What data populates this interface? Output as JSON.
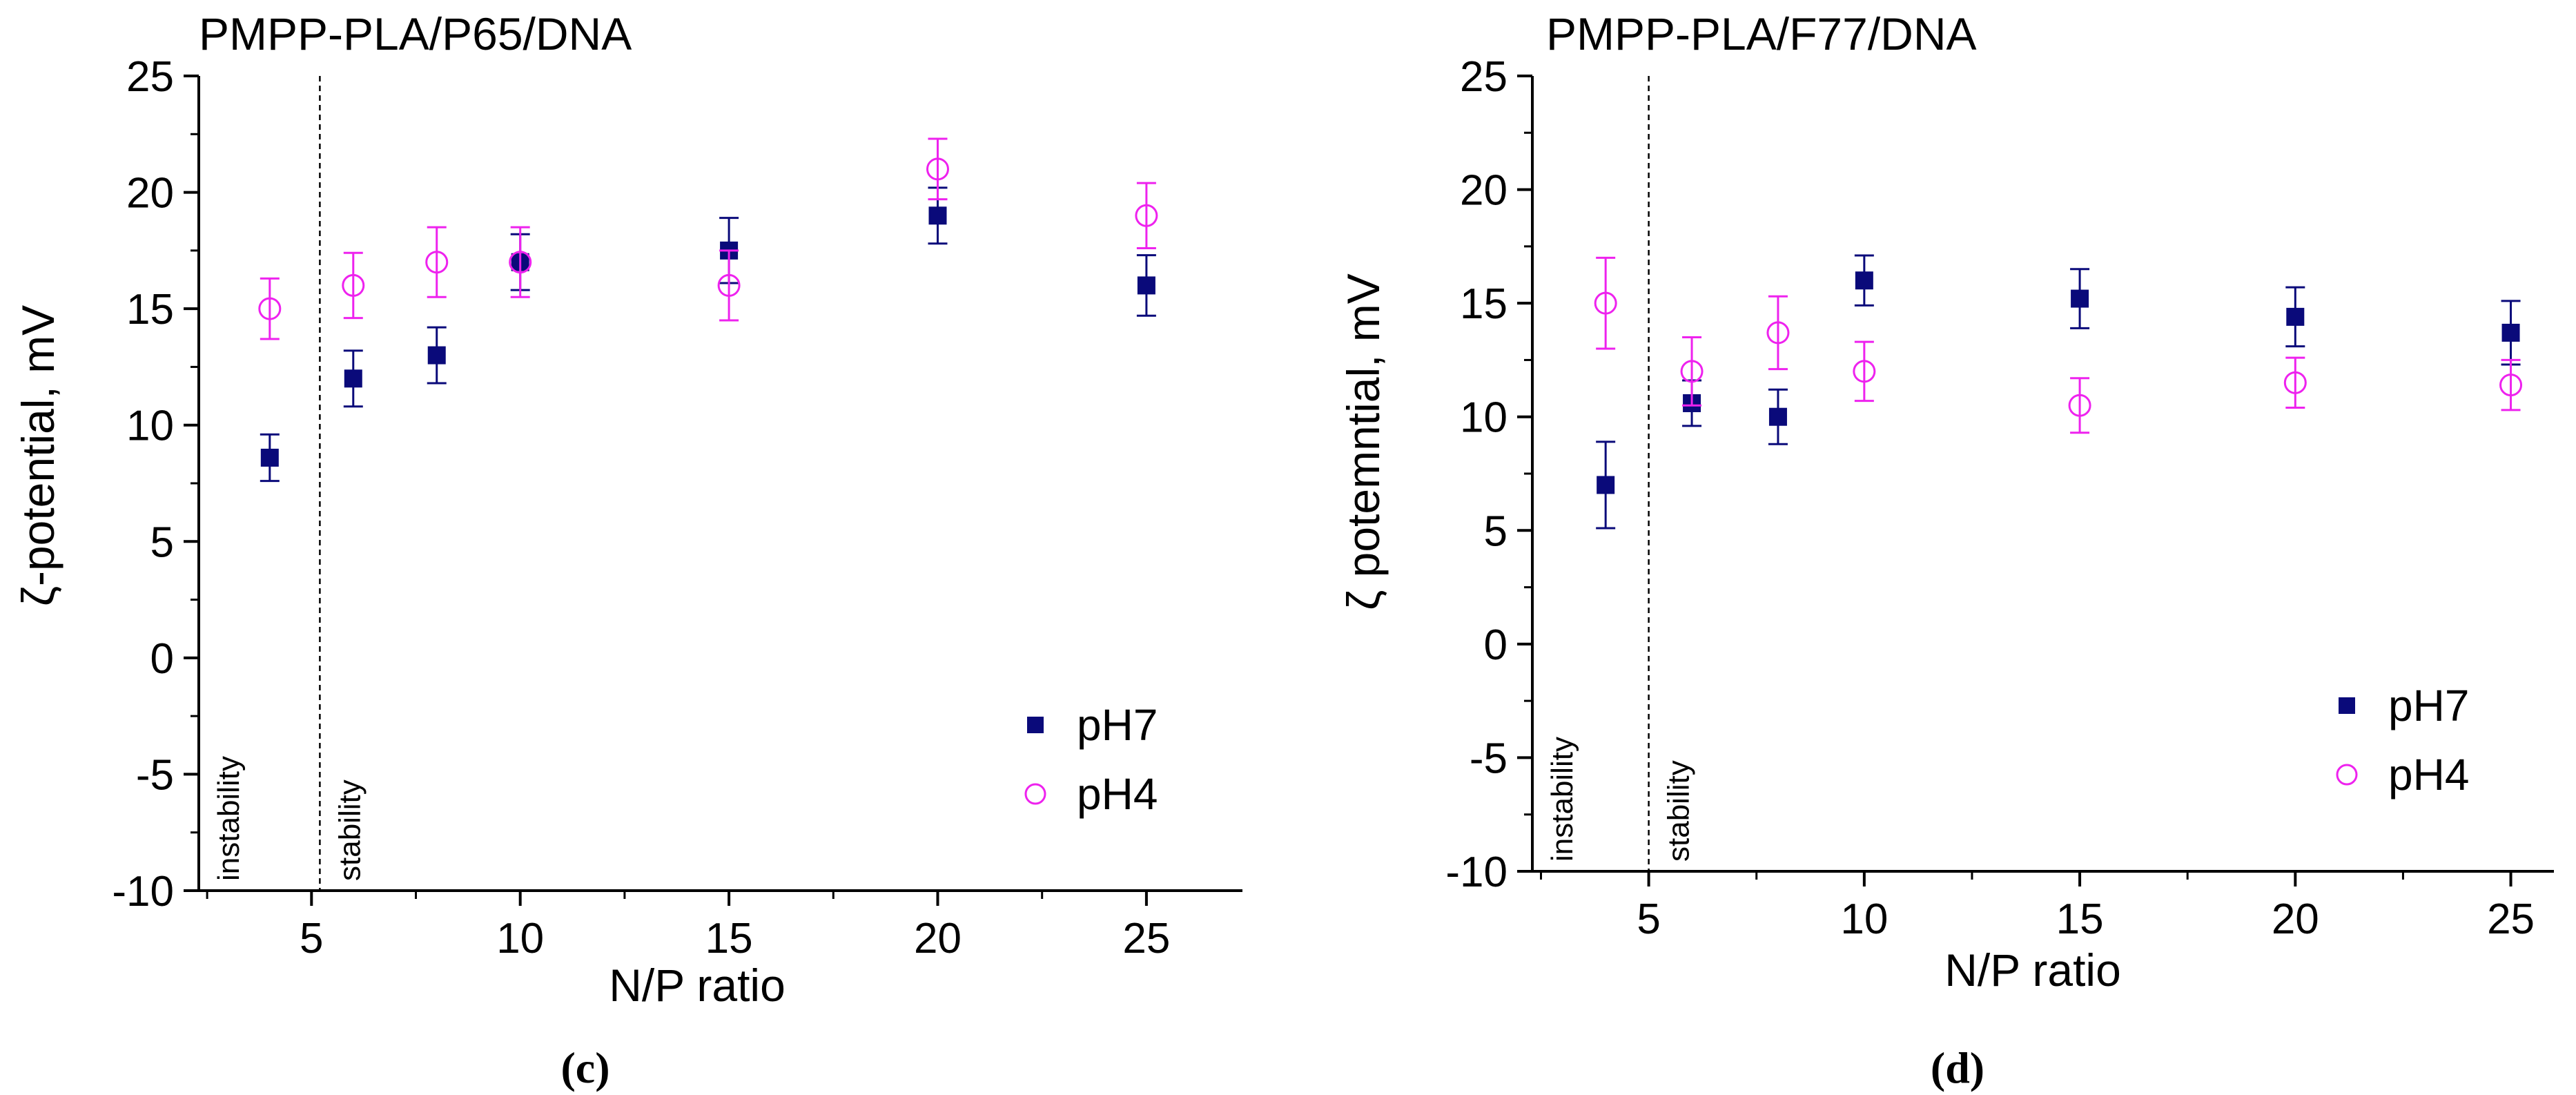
{
  "colors": {
    "pH7": "#0a0a7a",
    "pH4": "#ee22ee",
    "axis": "#000000"
  },
  "chart_data": [
    {
      "type": "scatter",
      "panel_label": "(c)",
      "title": "PMPP-PLA/P65/DNA",
      "xlabel": "N/P ratio",
      "ylabel": "ζ-potential, mV",
      "xlim": [
        2.3,
        27.3
      ],
      "ylim": [
        -10,
        25
      ],
      "xticks": [
        5,
        10,
        15,
        20,
        25
      ],
      "yticks": [
        -10,
        -5,
        0,
        5,
        10,
        15,
        20,
        25
      ],
      "region_divider_x": 5.2,
      "region_labels": [
        "instability",
        "stability"
      ],
      "legend_position": "bottom-right",
      "series": [
        {
          "name": "pH7",
          "marker": "filled-square",
          "x": [
            4,
            6,
            8,
            10,
            15,
            20,
            25
          ],
          "y": [
            8.6,
            12.0,
            13.0,
            17.0,
            17.5,
            19.0,
            16.0
          ],
          "err": [
            1.0,
            1.2,
            1.2,
            1.2,
            1.4,
            1.2,
            1.3
          ]
        },
        {
          "name": "pH4",
          "marker": "open-circle",
          "x": [
            4,
            6,
            8,
            10,
            15,
            20,
            25
          ],
          "y": [
            15.0,
            16.0,
            17.0,
            17.0,
            16.0,
            21.0,
            19.0
          ],
          "err": [
            1.3,
            1.4,
            1.5,
            1.5,
            1.5,
            1.3,
            1.4
          ]
        }
      ]
    },
    {
      "type": "scatter",
      "panel_label": "(d)",
      "title": "PMPP-PLA/F77/DNA",
      "xlabel": "N/P ratio",
      "ylabel": "ζ potemntial, mV",
      "xlim": [
        2.3,
        26.0
      ],
      "ylim": [
        -10,
        25
      ],
      "xticks": [
        5,
        10,
        15,
        20,
        25
      ],
      "yticks": [
        -10,
        -5,
        0,
        5,
        10,
        15,
        20,
        25
      ],
      "region_divider_x": 5.0,
      "region_labels": [
        "instability",
        "stability"
      ],
      "legend_position": "bottom-right",
      "series": [
        {
          "name": "pH7",
          "marker": "filled-square",
          "x": [
            4,
            6,
            8,
            10,
            15,
            20,
            25
          ],
          "y": [
            7.0,
            10.6,
            10.0,
            16.0,
            15.2,
            14.4,
            13.7
          ],
          "err": [
            1.9,
            1.0,
            1.2,
            1.1,
            1.3,
            1.3,
            1.4
          ]
        },
        {
          "name": "pH4",
          "marker": "open-circle",
          "x": [
            4,
            6,
            8,
            10,
            15,
            20,
            25
          ],
          "y": [
            15.0,
            12.0,
            13.7,
            12.0,
            10.5,
            11.5,
            11.4
          ],
          "err": [
            2.0,
            1.5,
            1.6,
            1.3,
            1.2,
            1.1,
            1.1
          ]
        }
      ]
    }
  ]
}
